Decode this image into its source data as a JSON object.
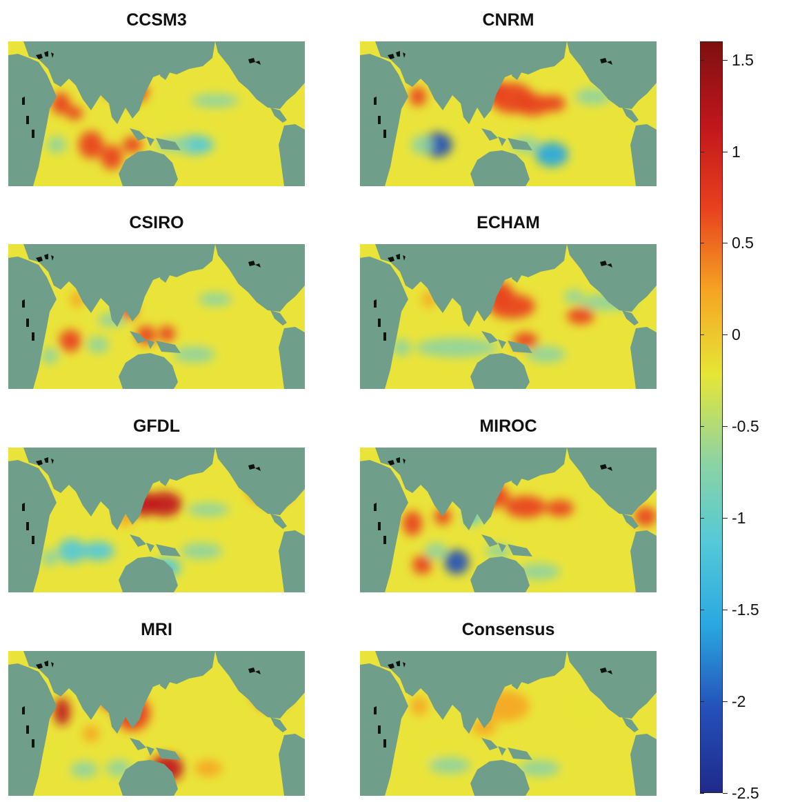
{
  "panels": [
    {
      "title": "CCSM3"
    },
    {
      "title": "CNRM"
    },
    {
      "title": "CSIRO"
    },
    {
      "title": "ECHAM"
    },
    {
      "title": "GFDL"
    },
    {
      "title": "MIROC"
    },
    {
      "title": "MRI"
    },
    {
      "title": "Consensus"
    }
  ],
  "colorbar": {
    "min": -2.5,
    "max": 1.6,
    "ticks": [
      {
        "value": 1.5,
        "label": "1.5"
      },
      {
        "value": 1,
        "label": "1"
      },
      {
        "value": 0.5,
        "label": "0.5"
      },
      {
        "value": 0,
        "label": "0"
      },
      {
        "value": -0.5,
        "label": "-0.5"
      },
      {
        "value": -1,
        "label": "-1"
      },
      {
        "value": -1.5,
        "label": "-1.5"
      },
      {
        "value": -2,
        "label": "-2"
      },
      {
        "value": -2.5,
        "label": "-2.5"
      }
    ],
    "colormap": [
      "#1f2a8a",
      "#2450b8",
      "#29a8e0",
      "#54c9d8",
      "#8fd4a0",
      "#e6e636",
      "#f5a623",
      "#e8411e",
      "#c0161c",
      "#7e1010"
    ]
  },
  "colors": {
    "land": "#6f9f8a",
    "ocean_zero": "#eae43a",
    "lakes": "#111111"
  }
}
